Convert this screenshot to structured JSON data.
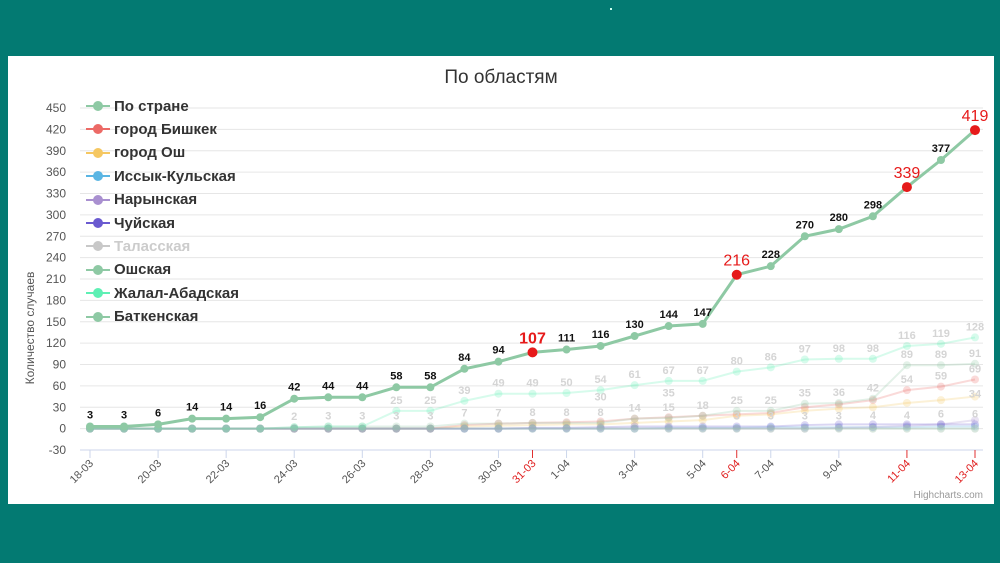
{
  "chart_data": {
    "type": "line",
    "title": "По областям",
    "ylabel": "Количество случаев",
    "xlabel": "",
    "credits": "Highcharts.com",
    "ylim": [
      -30,
      450
    ],
    "y_ticks": [
      -30,
      0,
      30,
      60,
      90,
      120,
      150,
      180,
      210,
      240,
      270,
      300,
      330,
      360,
      390,
      420,
      450
    ],
    "grid": true,
    "legend_position": "top-left",
    "dates": [
      "18-03",
      "19-03",
      "20-03",
      "21-03",
      "22-03",
      "23-03",
      "24-03",
      "25-03",
      "26-03",
      "27-03",
      "28-03",
      "29-03",
      "30-03",
      "31-03",
      "1-04",
      "2-04",
      "3-04",
      "4-04",
      "5-04",
      "6-04",
      "7-04",
      "8-04",
      "9-04",
      "10-04",
      "11-04",
      "12-04",
      "13-04"
    ],
    "tick_labels": [
      "18-03",
      "20-03",
      "22-03",
      "24-03",
      "26-03",
      "28-03",
      "30-03",
      "31-03",
      "1-04",
      "3-04",
      "5-04",
      "6-04",
      "7-04",
      "9-04",
      "11-04",
      "13-04"
    ],
    "highlight_dates": [
      "31-03",
      "6-04",
      "11-04",
      "13-04"
    ],
    "series": [
      {
        "name": "По стране",
        "color": "#8ec9a4",
        "values": [
          3,
          3,
          6,
          14,
          14,
          16,
          42,
          44,
          44,
          58,
          58,
          84,
          94,
          107,
          111,
          116,
          130,
          144,
          147,
          216,
          228,
          270,
          280,
          298,
          339,
          377,
          419
        ]
      },
      {
        "name": "город Бишкек",
        "color": "#ec6a66",
        "values": [
          0,
          0,
          0,
          0,
          0,
          0,
          0,
          0,
          0,
          0,
          0,
          5,
          7,
          8,
          9,
          10,
          14,
          16,
          18,
          20,
          22,
          30,
          34,
          40,
          54,
          59,
          69
        ]
      },
      {
        "name": "город Ош",
        "color": "#f5c761",
        "values": [
          0,
          0,
          0,
          0,
          0,
          0,
          0,
          0,
          0,
          0,
          0,
          3,
          4,
          5,
          6,
          6,
          8,
          10,
          12,
          18,
          20,
          25,
          28,
          30,
          36,
          40,
          45
        ]
      },
      {
        "name": "Иссык-Кульская",
        "color": "#5ab5e3",
        "values": [
          0,
          0,
          0,
          0,
          0,
          0,
          0,
          0,
          0,
          0,
          0,
          0,
          0,
          0,
          0,
          0,
          0,
          1,
          1,
          1,
          2,
          2,
          2,
          2,
          2,
          3,
          3
        ]
      },
      {
        "name": "Нарынская",
        "color": "#a990d0",
        "values": [
          0,
          0,
          0,
          0,
          0,
          0,
          0,
          0,
          0,
          0,
          0,
          0,
          0,
          0,
          0,
          0,
          0,
          0,
          0,
          0,
          0,
          0,
          1,
          2,
          4,
          6,
          12
        ]
      },
      {
        "name": "Чуйская",
        "color": "#6a5ad0",
        "values": [
          0,
          0,
          0,
          0,
          0,
          0,
          0,
          0,
          0,
          0,
          0,
          0,
          0,
          1,
          1,
          2,
          3,
          3,
          3,
          3,
          3,
          5,
          6,
          6,
          6,
          6,
          6
        ]
      },
      {
        "name": "Таласская",
        "color": "#c8c8c8",
        "values": [
          0,
          0,
          0,
          0,
          0,
          0,
          0,
          0,
          0,
          0,
          0,
          0,
          0,
          0,
          0,
          0,
          0,
          0,
          0,
          0,
          0,
          0,
          0,
          0,
          0,
          0,
          0
        ]
      },
      {
        "name": "Ошская",
        "color": "#8ec9a4",
        "values": [
          0,
          0,
          0,
          0,
          0,
          0,
          2,
          3,
          3,
          3,
          3,
          7,
          7,
          8,
          8,
          8,
          14,
          15,
          18,
          25,
          25,
          35,
          36,
          42,
          89,
          89,
          91
        ]
      },
      {
        "name": "Жалал-Абадская",
        "color": "#5ef0b4",
        "values": [
          0,
          0,
          0,
          0,
          0,
          0,
          2,
          3,
          3,
          25,
          25,
          39,
          49,
          49,
          50,
          54,
          61,
          67,
          67,
          80,
          86,
          97,
          98,
          98,
          116,
          119,
          128
        ]
      },
      {
        "name": "Баткенская",
        "color": "#8ec9a4",
        "values": [
          0,
          0,
          0,
          0,
          0,
          0,
          0,
          0,
          0,
          0,
          0,
          0,
          0,
          0,
          0,
          0,
          0,
          0,
          0,
          0,
          0,
          0,
          0,
          0,
          0,
          0,
          0
        ]
      }
    ],
    "country_labels": [
      {
        "date": "18-03",
        "text": "3"
      },
      {
        "date": "19-03",
        "text": "3"
      },
      {
        "date": "20-03",
        "text": "6"
      },
      {
        "date": "21-03",
        "text": "14"
      },
      {
        "date": "22-03",
        "text": "14"
      },
      {
        "date": "23-03",
        "text": "16"
      },
      {
        "date": "24-03",
        "text": "42"
      },
      {
        "date": "25-03",
        "text": "44"
      },
      {
        "date": "26-03",
        "text": "44"
      },
      {
        "date": "27-03",
        "text": "58"
      },
      {
        "date": "28-03",
        "text": "58"
      },
      {
        "date": "29-03",
        "text": "84"
      },
      {
        "date": "30-03",
        "text": "94"
      },
      {
        "date": "31-03",
        "text": "107"
      },
      {
        "date": "1-04",
        "text": "111"
      },
      {
        "date": "2-04",
        "text": "116"
      },
      {
        "date": "3-04",
        "text": "130"
      },
      {
        "date": "4-04",
        "text": "144"
      },
      {
        "date": "5-04",
        "text": "147"
      },
      {
        "date": "6-04",
        "text": "216"
      },
      {
        "date": "7-04",
        "text": "228"
      },
      {
        "date": "8-04",
        "text": "270"
      },
      {
        "date": "9-04",
        "text": "280"
      },
      {
        "date": "10-04",
        "text": "298"
      },
      {
        "date": "11-04",
        "text": "339"
      },
      {
        "date": "12-04",
        "text": "377"
      },
      {
        "date": "13-04",
        "text": "419"
      }
    ],
    "faded_labels": [
      {
        "date": "24-03",
        "value": 2,
        "text": "2"
      },
      {
        "date": "25-03",
        "value": 3,
        "text": "3"
      },
      {
        "date": "26-03",
        "value": 3,
        "text": "3"
      },
      {
        "date": "27-03",
        "value": 25,
        "text": "25"
      },
      {
        "date": "28-03",
        "value": 25,
        "text": "25"
      },
      {
        "date": "27-03",
        "value": 3,
        "text": "3"
      },
      {
        "date": "28-03",
        "value": 3,
        "text": "3"
      },
      {
        "date": "29-03",
        "value": 39,
        "text": "39"
      },
      {
        "date": "30-03",
        "value": 49,
        "text": "49"
      },
      {
        "date": "31-03",
        "value": 49,
        "text": "49"
      },
      {
        "date": "1-04",
        "value": 50,
        "text": "50"
      },
      {
        "date": "29-03",
        "value": 7,
        "text": "7"
      },
      {
        "date": "30-03",
        "value": 7,
        "text": "7"
      },
      {
        "date": "31-03",
        "value": 8,
        "text": "8"
      },
      {
        "date": "1-04",
        "value": 8,
        "text": "8"
      },
      {
        "date": "2-04",
        "value": 54,
        "text": "54"
      },
      {
        "date": "2-04",
        "value": 30,
        "text": "30"
      },
      {
        "date": "2-04",
        "value": 8,
        "text": "8"
      },
      {
        "date": "3-04",
        "value": 61,
        "text": "61"
      },
      {
        "date": "3-04",
        "value": 14,
        "text": "14"
      },
      {
        "date": "4-04",
        "value": 67,
        "text": "67"
      },
      {
        "date": "4-04",
        "value": 35,
        "text": "35"
      },
      {
        "date": "4-04",
        "value": 15,
        "text": "15"
      },
      {
        "date": "5-04",
        "value": 67,
        "text": "67"
      },
      {
        "date": "5-04",
        "value": 18,
        "text": "18"
      },
      {
        "date": "6-04",
        "value": 80,
        "text": "80"
      },
      {
        "date": "6-04",
        "value": 25,
        "text": "25"
      },
      {
        "date": "6-04",
        "value": 3,
        "text": "3"
      },
      {
        "date": "7-04",
        "value": 86,
        "text": "86"
      },
      {
        "date": "7-04",
        "value": 25,
        "text": "25"
      },
      {
        "date": "7-04",
        "value": 3,
        "text": "3"
      },
      {
        "date": "8-04",
        "value": 97,
        "text": "97"
      },
      {
        "date": "8-04",
        "value": 35,
        "text": "35"
      },
      {
        "date": "8-04",
        "value": 3,
        "text": "3"
      },
      {
        "date": "9-04",
        "value": 98,
        "text": "98"
      },
      {
        "date": "9-04",
        "value": 36,
        "text": "36"
      },
      {
        "date": "9-04",
        "value": 3,
        "text": "3"
      },
      {
        "date": "10-04",
        "value": 98,
        "text": "98"
      },
      {
        "date": "10-04",
        "value": 42,
        "text": "42"
      },
      {
        "date": "10-04",
        "value": 4,
        "text": "4"
      },
      {
        "date": "11-04",
        "value": 116,
        "text": "116"
      },
      {
        "date": "11-04",
        "value": 89,
        "text": "89"
      },
      {
        "date": "11-04",
        "value": 54,
        "text": "54"
      },
      {
        "date": "11-04",
        "value": 4,
        "text": "4"
      },
      {
        "date": "12-04",
        "value": 119,
        "text": "119"
      },
      {
        "date": "12-04",
        "value": 89,
        "text": "89"
      },
      {
        "date": "12-04",
        "value": 59,
        "text": "59"
      },
      {
        "date": "12-04",
        "value": 6,
        "text": "6"
      },
      {
        "date": "13-04",
        "value": 128,
        "text": "128"
      },
      {
        "date": "13-04",
        "value": 91,
        "text": "91"
      },
      {
        "date": "13-04",
        "value": 69,
        "text": "69"
      },
      {
        "date": "13-04",
        "value": 34,
        "text": "34"
      },
      {
        "date": "13-04",
        "value": 6,
        "text": "6"
      }
    ]
  }
}
